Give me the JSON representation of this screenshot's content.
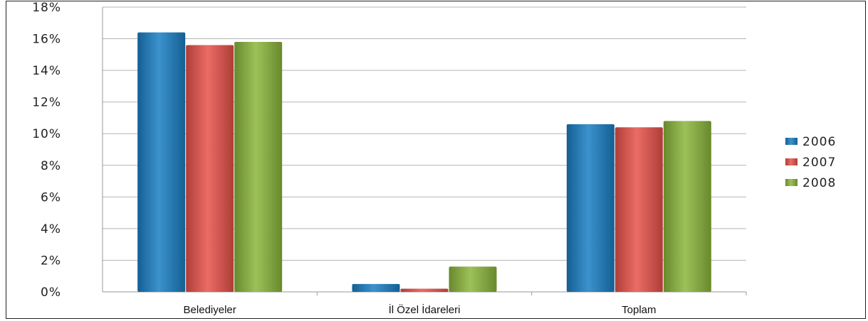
{
  "chart_data": {
    "type": "bar",
    "categories": [
      "Belediyeler",
      "İl Özel İdareleri",
      "Toplam"
    ],
    "series": [
      {
        "name": "2006",
        "values": [
          16.4,
          0.5,
          10.6
        ],
        "color": "#1a7fc4"
      },
      {
        "name": "2007",
        "values": [
          15.6,
          0.2,
          10.4
        ],
        "color": "#e8524a"
      },
      {
        "name": "2008",
        "values": [
          15.8,
          1.6,
          10.8
        ],
        "color": "#8cb63c"
      }
    ],
    "y_ticks": [
      "0%",
      "2%",
      "4%",
      "6%",
      "8%",
      "10%",
      "12%",
      "14%",
      "16%",
      "18%"
    ],
    "ylim": [
      0,
      18
    ],
    "grid": true,
    "legend_position": "right",
    "title": "",
    "xlabel": "",
    "ylabel": ""
  }
}
